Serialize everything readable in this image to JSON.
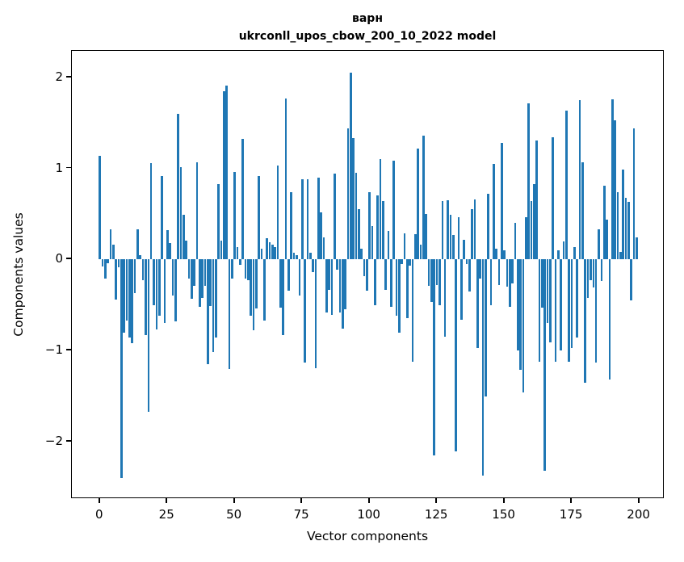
{
  "title": {
    "line1": "варн",
    "line2": "ukrconll_upos_cbow_200_10_2022 model"
  },
  "axes": {
    "xlabel": "Vector components",
    "ylabel": "Components values"
  },
  "chart_data": {
    "type": "bar",
    "title": "варн\nukrconll_upos_cbow_200_10_2022 model",
    "xlabel": "Vector components",
    "ylabel": "Components values",
    "bar_color": "#1f77b4",
    "grid": false,
    "legend": "none",
    "xlim": [
      -10.4,
      209.4
    ],
    "ylim": [
      -2.63,
      2.29
    ],
    "xtick_values": [
      0,
      25,
      50,
      75,
      100,
      125,
      150,
      175,
      200
    ],
    "xtick_labels": [
      "0",
      "25",
      "50",
      "75",
      "100",
      "125",
      "150",
      "175",
      "200"
    ],
    "ytick_values": [
      -2,
      -1,
      0,
      1,
      2
    ],
    "ytick_labels": [
      "−2",
      "−1",
      "0",
      "1",
      "2"
    ],
    "x_start": 0,
    "bar_width_units": 0.8,
    "values": [
      1.14,
      -0.08,
      -0.21,
      -0.04,
      0.33,
      0.16,
      -0.44,
      -0.09,
      -2.4,
      -0.8,
      -0.67,
      -0.86,
      -0.92,
      -0.37,
      0.33,
      0.05,
      -0.23,
      -0.83,
      -1.67,
      1.06,
      -0.5,
      -0.77,
      -0.62,
      0.92,
      -0.7,
      0.32,
      0.18,
      -0.4,
      -0.68,
      1.6,
      1.01,
      0.49,
      0.21,
      -0.21,
      -0.43,
      -0.29,
      1.07,
      -0.52,
      -0.42,
      -0.29,
      -1.15,
      -0.51,
      -1.02,
      -0.86,
      0.83,
      0.21,
      1.85,
      1.91,
      -1.2,
      -0.21,
      0.96,
      0.14,
      -0.06,
      1.32,
      -0.21,
      -0.23,
      -0.62,
      -0.78,
      -0.54,
      0.92,
      0.12,
      -0.67,
      0.23,
      0.19,
      0.16,
      0.14,
      1.03,
      -0.53,
      -0.83,
      1.77,
      -0.34,
      0.74,
      0.07,
      0.05,
      -0.4,
      0.88,
      -1.13,
      0.88,
      0.07,
      -0.14,
      -1.19,
      0.9,
      0.52,
      0.24,
      -0.58,
      -0.33,
      -0.61,
      0.94,
      -0.11,
      -0.58,
      -0.76,
      -0.55,
      1.44,
      2.05,
      1.33,
      0.95,
      0.55,
      0.12,
      -0.18,
      -0.34,
      0.74,
      0.37,
      -0.5,
      0.7,
      1.1,
      0.64,
      -0.33,
      0.31,
      -0.52,
      1.08,
      -0.62,
      -0.8,
      -0.05,
      0.29,
      -0.64,
      -0.07,
      -1.12,
      0.28,
      1.22,
      0.16,
      1.36,
      0.5,
      -0.29,
      -0.47,
      -2.15,
      -0.28,
      -0.5,
      0.64,
      -0.85,
      0.65,
      0.49,
      0.27,
      -2.11,
      0.46,
      -0.66,
      0.22,
      -0.05,
      -0.35,
      0.55,
      0.66,
      -0.97,
      -0.21,
      -2.37,
      -1.5,
      0.72,
      -0.5,
      1.05,
      0.12,
      -0.28,
      1.28,
      0.1,
      -0.3,
      -0.52,
      -0.26,
      0.4,
      -1.0,
      -1.21,
      -1.46,
      0.46,
      1.71,
      0.64,
      0.83,
      1.31,
      -1.12,
      -0.53,
      -2.32,
      -0.7,
      -0.91,
      1.34,
      -1.12,
      0.1,
      -1.0,
      0.2,
      1.63,
      -1.12,
      -0.97,
      0.14,
      -0.86,
      1.75,
      1.07,
      -1.35,
      -0.42,
      -0.23,
      -0.31,
      -1.13,
      0.33,
      -0.24,
      0.81,
      0.44,
      -1.32,
      1.76,
      1.53,
      0.74,
      0.08,
      0.99,
      0.68,
      0.63,
      -0.45,
      1.44,
      0.24
    ]
  }
}
